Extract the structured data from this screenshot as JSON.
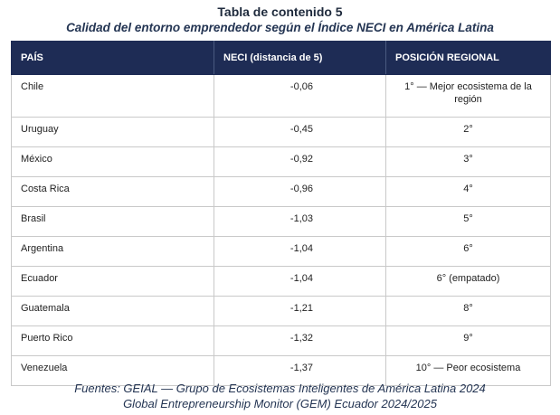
{
  "document": {
    "title": "Tabla de contenido 5",
    "subtitle": "Calidad del entorno emprendedor según el Índice NECI en América Latina"
  },
  "table": {
    "headers": [
      "PAÍS",
      "NECI (distancia de 5)",
      "POSICIÓN REGIONAL"
    ],
    "rows": [
      {
        "country": "Chile",
        "neci": "-0,06",
        "position": "1° — Mejor ecosistema de la región"
      },
      {
        "country": "Uruguay",
        "neci": "-0,45",
        "position": "2°"
      },
      {
        "country": "México",
        "neci": "-0,92",
        "position": "3°"
      },
      {
        "country": "Costa Rica",
        "neci": "-0,96",
        "position": "4°"
      },
      {
        "country": "Brasil",
        "neci": "-1,03",
        "position": "5°"
      },
      {
        "country": "Argentina",
        "neci": "-1,04",
        "position": "6°"
      },
      {
        "country": "Ecuador",
        "neci": "-1,04",
        "position": "6° (empatado)"
      },
      {
        "country": "Guatemala",
        "neci": "-1,21",
        "position": "8°"
      },
      {
        "country": "Puerto Rico",
        "neci": "-1,32",
        "position": "9°"
      },
      {
        "country": "Venezuela",
        "neci": "-1,37",
        "position": "10° — Peor ecosistema"
      }
    ]
  },
  "sources": {
    "line1": "Fuentes: GEIAL — Grupo de Ecosistemas Inteligentes de América Latina 2024",
    "line2": "Global Entrepreneurship Monitor (GEM) Ecuador 2024/2025"
  },
  "colors": {
    "header_bg": "#1e2c55",
    "header_text": "#ffffff",
    "title_text": "#1e2a3c",
    "border": "#c9c9c9"
  }
}
